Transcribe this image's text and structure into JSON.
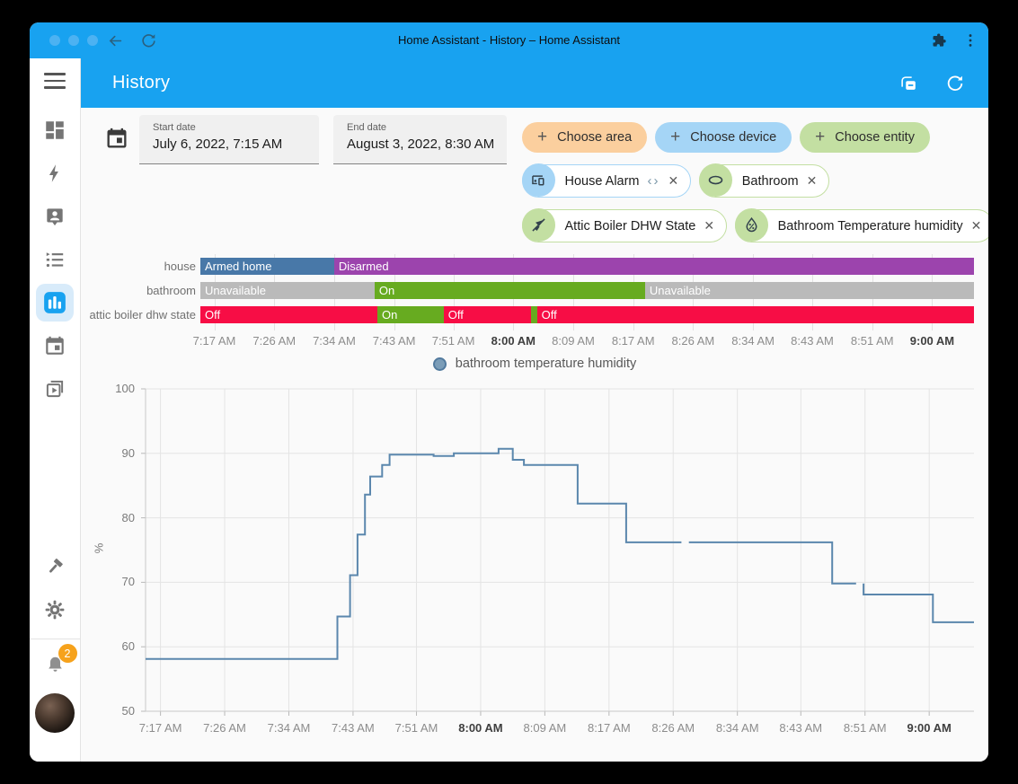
{
  "browser": {
    "title": "Home Assistant - History – Home Assistant"
  },
  "header": {
    "title": "History",
    "icons": [
      {
        "name": "ungroup-entities",
        "icon": "cards-minus"
      },
      {
        "name": "refresh",
        "icon": "refresh"
      }
    ]
  },
  "sidebar": {
    "items": [
      {
        "name": "dashboard",
        "icon": "view-dashboard",
        "active": false
      },
      {
        "name": "energy",
        "icon": "lightning-bolt",
        "active": false
      },
      {
        "name": "map",
        "icon": "account-marker",
        "active": false
      },
      {
        "name": "logbook",
        "icon": "list-bulleted",
        "active": false
      },
      {
        "name": "history",
        "icon": "bar-chart",
        "active": true
      },
      {
        "name": "calendar",
        "icon": "calendar",
        "active": false
      },
      {
        "name": "media-browser",
        "icon": "play-box",
        "active": false
      }
    ],
    "bottom_items": [
      {
        "name": "developer-tools",
        "icon": "hammer"
      },
      {
        "name": "settings",
        "icon": "gear"
      }
    ],
    "notification_count": "2"
  },
  "filters": {
    "start_date": {
      "label": "Start date",
      "value": "July 6, 2022, 7:15 AM"
    },
    "end_date": {
      "label": "End date",
      "value": "August 3, 2022, 8:30 AM"
    },
    "choose_chips": [
      {
        "label": "Choose area",
        "color": "#fbcf9e",
        "icon": "plus"
      },
      {
        "label": "Choose device",
        "color": "#a5d5f6",
        "icon": "plus"
      },
      {
        "label": "Choose entity",
        "color": "#c3dfa2",
        "icon": "plus"
      }
    ],
    "selected_chip_rows": [
      [
        {
          "label": "House Alarm",
          "color": "#a5d5f6",
          "icon": "devices",
          "extra": "‹›"
        },
        {
          "label": "Bathroom",
          "color": "#c3dfa2",
          "icon": "area-ellipse"
        }
      ],
      [
        {
          "label": "Attic Boiler DHW State",
          "color": "#c3dfa2",
          "icon": "pump-off"
        },
        {
          "label": "Bathroom Temperature humidity",
          "color": "#c3dfa2",
          "icon": "water-percent"
        }
      ]
    ],
    "close_glyph": "✕"
  },
  "time_axis": {
    "total_minutes": 111,
    "start_label_time": "7:15 AM",
    "ticks": [
      {
        "m": 2,
        "label": "7:17 AM",
        "bold": false
      },
      {
        "m": 10.6,
        "label": "7:26 AM",
        "bold": false
      },
      {
        "m": 19.2,
        "label": "7:34 AM",
        "bold": false
      },
      {
        "m": 27.8,
        "label": "7:43 AM",
        "bold": false
      },
      {
        "m": 36.3,
        "label": "7:51 AM",
        "bold": false
      },
      {
        "m": 44.9,
        "label": "8:00 AM",
        "bold": true
      },
      {
        "m": 53.5,
        "label": "8:09 AM",
        "bold": false
      },
      {
        "m": 62.1,
        "label": "8:17 AM",
        "bold": false
      },
      {
        "m": 70.7,
        "label": "8:26 AM",
        "bold": false
      },
      {
        "m": 79.3,
        "label": "8:34 AM",
        "bold": false
      },
      {
        "m": 87.8,
        "label": "8:43 AM",
        "bold": false
      },
      {
        "m": 96.4,
        "label": "8:51 AM",
        "bold": false
      },
      {
        "m": 105,
        "label": "9:00 AM",
        "bold": true
      }
    ]
  },
  "timeline": {
    "rows": [
      {
        "name": "house",
        "segments": [
          {
            "label": "Armed home",
            "color": "#4878a8",
            "start": 0,
            "end": 19.2
          },
          {
            "label": "Disarmed",
            "color": "#9c44ad",
            "start": 19.2,
            "end": 111
          }
        ]
      },
      {
        "name": "bathroom",
        "segments": [
          {
            "label": "Unavailable",
            "color": "#bababa",
            "start": 0,
            "end": 25
          },
          {
            "label": "On",
            "color": "#67ab20",
            "start": 25,
            "end": 63.8
          },
          {
            "label": "Unavailable",
            "color": "#bababa",
            "start": 63.8,
            "end": 111
          }
        ]
      },
      {
        "name": "attic boiler dhw state",
        "segments": [
          {
            "label": "Off",
            "color": "#f70d45",
            "start": 0,
            "end": 25.4
          },
          {
            "label": "On",
            "color": "#67ab20",
            "start": 25.4,
            "end": 34.9
          },
          {
            "label": "Off",
            "color": "#f70d45",
            "start": 34.9,
            "end": 47.4
          },
          {
            "label": "",
            "color": "#67ab20",
            "start": 47.4,
            "end": 48.3
          },
          {
            "label": "Off",
            "color": "#f70d45",
            "start": 48.3,
            "end": 111
          }
        ]
      }
    ]
  },
  "legend": {
    "label": "bathroom temperature humidity",
    "marker_fill": "#7b9db8",
    "marker_border": "#527a9e"
  },
  "chart_data": {
    "type": "line",
    "title": "bathroom temperature humidity",
    "ylabel": "%",
    "ylim": [
      50,
      100
    ],
    "yticks": [
      100,
      90,
      80,
      70,
      60,
      50
    ],
    "x_unit": "minutes since 7:15 AM",
    "x_range": [
      0,
      111
    ],
    "line_color": "#5b87ad",
    "grid": true,
    "segments": [
      [
        [
          0,
          58.1
        ],
        [
          25.7,
          58.1
        ],
        [
          25.7,
          64.7
        ],
        [
          27.4,
          64.7
        ],
        [
          27.4,
          71.1
        ],
        [
          28.4,
          71.1
        ],
        [
          28.4,
          77.4
        ],
        [
          29.4,
          77.4
        ],
        [
          29.4,
          83.6
        ],
        [
          30.1,
          83.6
        ],
        [
          30.1,
          86.4
        ],
        [
          31.7,
          86.4
        ],
        [
          31.7,
          88.2
        ],
        [
          32.7,
          88.2
        ],
        [
          32.7,
          89.8
        ],
        [
          38.6,
          89.8
        ],
        [
          38.6,
          89.6
        ],
        [
          41.3,
          89.6
        ],
        [
          41.3,
          90.0
        ],
        [
          47.3,
          90.0
        ],
        [
          47.3,
          90.7
        ],
        [
          49.2,
          90.7
        ],
        [
          49.2,
          89.0
        ],
        [
          50.7,
          89.0
        ],
        [
          50.7,
          88.2
        ],
        [
          57.9,
          88.2
        ],
        [
          57.9,
          82.2
        ],
        [
          64.4,
          82.2
        ],
        [
          64.4,
          76.2
        ],
        [
          71.8,
          76.2
        ]
      ],
      [
        [
          72.8,
          76.2
        ],
        [
          92.0,
          76.2
        ],
        [
          92.0,
          69.8
        ],
        [
          95.2,
          69.8
        ]
      ],
      [
        [
          96.2,
          69.8
        ],
        [
          96.2,
          68.1
        ],
        [
          105.5,
          68.1
        ],
        [
          105.5,
          63.8
        ],
        [
          111,
          63.8
        ]
      ]
    ]
  }
}
